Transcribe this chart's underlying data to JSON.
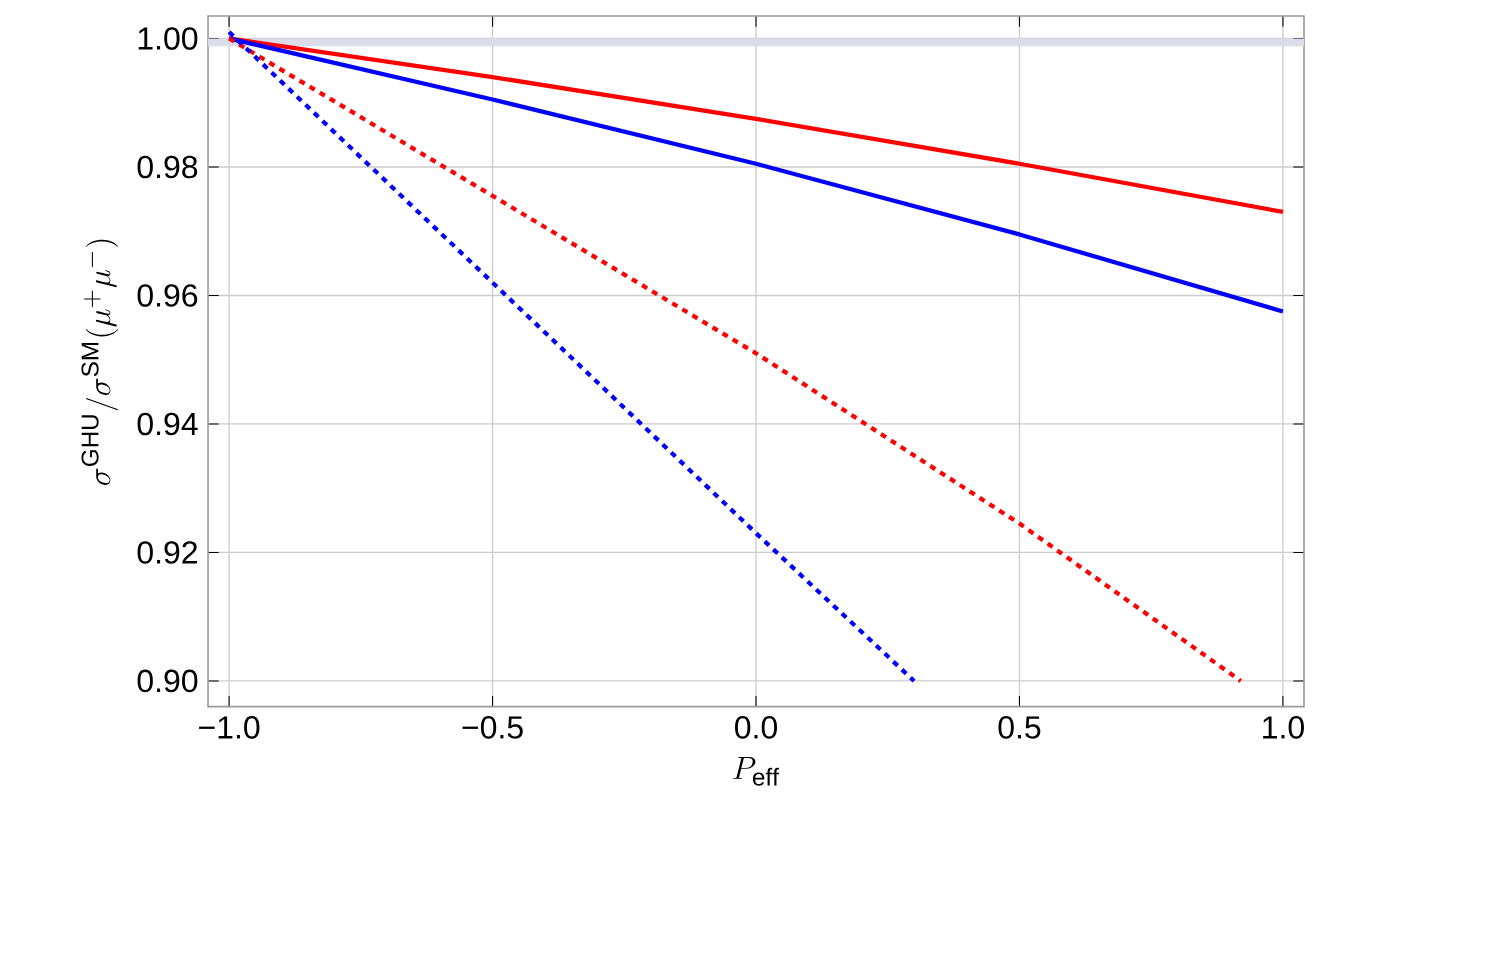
{
  "chart_data": {
    "type": "line",
    "xlabel": "P_{\\mathrm{eff}}",
    "ylabel": "\\sigma^{\\mathrm{GHU}}/\\sigma^{\\mathrm{SM}}(\\mu^{+}\\mu^{-})",
    "xlim": [
      -1.04,
      1.04
    ],
    "ylim": [
      0.896,
      1.0035
    ],
    "xticks": [
      {
        "value": -1.0,
        "label": "−1.0"
      },
      {
        "value": -0.5,
        "label": "−0.5"
      },
      {
        "value": 0.0,
        "label": "0.0"
      },
      {
        "value": 0.5,
        "label": "0.5"
      },
      {
        "value": 1.0,
        "label": "1.0"
      }
    ],
    "yticks": [
      {
        "value": 0.9,
        "label": "0.90"
      },
      {
        "value": 0.92,
        "label": "0.92"
      },
      {
        "value": 0.94,
        "label": "0.94"
      },
      {
        "value": 0.96,
        "label": "0.96"
      },
      {
        "value": 0.98,
        "label": "0.98"
      },
      {
        "value": 1.0,
        "label": "1.00"
      }
    ],
    "grid": true,
    "bands": [
      {
        "axis": "y",
        "from": 0.9988,
        "to": 1.0,
        "color": "#dcdcea"
      }
    ],
    "series": [
      {
        "color": "#ff0000",
        "line_style": "solid",
        "x": [
          -1.0,
          -0.5,
          0.0,
          0.5,
          1.0
        ],
        "values": [
          1.0,
          0.994,
          0.9875,
          0.9805,
          0.973
        ]
      },
      {
        "color": "#0000ff",
        "line_style": "solid",
        "x": [
          -1.0,
          -0.5,
          0.0,
          0.5,
          1.0
        ],
        "values": [
          1.0,
          0.9905,
          0.9805,
          0.9695,
          0.9575
        ]
      },
      {
        "color": "#ff0000",
        "line_style": "dotted",
        "x": [
          -1.0,
          -0.5,
          0.0,
          0.5,
          0.92
        ],
        "values": [
          1.0,
          0.9755,
          0.951,
          0.9245,
          0.9
        ]
      },
      {
        "color": "#0000ff",
        "line_style": "dotted",
        "x": [
          -1.0,
          -0.5,
          0.0,
          0.3
        ],
        "values": [
          1.001,
          0.962,
          0.923,
          0.9
        ]
      }
    ]
  }
}
